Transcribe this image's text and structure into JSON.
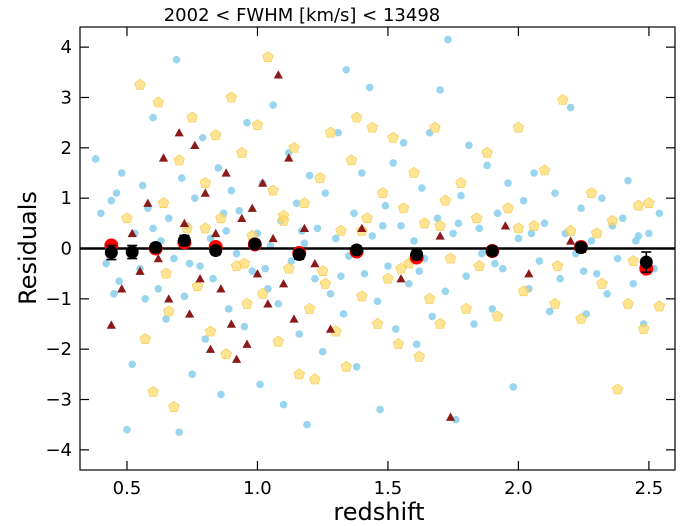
{
  "chart_data": {
    "type": "scatter",
    "title": "2002 < FWHM [km/s] < 13498",
    "xlabel": "redshift",
    "ylabel": "Residuals",
    "xlim": [
      0.32,
      2.6
    ],
    "ylim": [
      -4.4,
      4.4
    ],
    "xticks": [
      0.5,
      1.0,
      1.5,
      2.0,
      2.5
    ],
    "xtick_labels": [
      "0.5",
      "1.0",
      "1.5",
      "2.0",
      "2.5"
    ],
    "yticks": [
      -4,
      -3,
      -2,
      -1,
      0,
      1,
      2,
      3,
      4
    ],
    "ytick_labels": [
      "−4",
      "−3",
      "−2",
      "−1",
      "0",
      "1",
      "2",
      "3",
      "4"
    ],
    "reference_line_y": 0,
    "grid": false,
    "colors": {
      "blue_points": "#87ceeb",
      "gold_points": "#ffd966",
      "darkred_triangles": "#8b1a1a",
      "red_markers": "#ff0000",
      "black_markers": "#000000"
    },
    "series": [
      {
        "marker": "circle",
        "color": "#87ceeb",
        "points": [
          [
            0.38,
            1.78
          ],
          [
            0.4,
            0.7
          ],
          [
            0.42,
            -0.3
          ],
          [
            0.44,
            0.95
          ],
          [
            0.46,
            1.1
          ],
          [
            0.47,
            -0.65
          ],
          [
            0.48,
            1.5
          ],
          [
            0.5,
            -3.6
          ],
          [
            0.52,
            -2.3
          ],
          [
            0.53,
            0.3
          ],
          [
            0.55,
            -0.4
          ],
          [
            0.56,
            1.25
          ],
          [
            0.57,
            -1.0
          ],
          [
            0.58,
            0.8
          ],
          [
            0.6,
            2.6
          ],
          [
            0.62,
            -0.8
          ],
          [
            0.63,
            0.15
          ],
          [
            0.65,
            -1.4
          ],
          [
            0.66,
            0.6
          ],
          [
            0.68,
            -0.2
          ],
          [
            0.69,
            3.75
          ],
          [
            0.7,
            -3.65
          ],
          [
            0.71,
            1.4
          ],
          [
            0.72,
            -0.95
          ],
          [
            0.73,
            0.45
          ],
          [
            0.75,
            -2.5
          ],
          [
            0.76,
            1.0
          ],
          [
            0.78,
            -0.35
          ],
          [
            0.79,
            2.2
          ],
          [
            0.8,
            -1.8
          ],
          [
            0.82,
            0.2
          ],
          [
            0.83,
            -0.6
          ],
          [
            0.85,
            1.6
          ],
          [
            0.86,
            -2.9
          ],
          [
            0.88,
            0.35
          ],
          [
            0.89,
            -1.2
          ],
          [
            0.9,
            1.15
          ],
          [
            0.92,
            -0.1
          ],
          [
            0.93,
            0.75
          ],
          [
            0.95,
            -1.55
          ],
          [
            0.96,
            2.5
          ],
          [
            0.98,
            -0.45
          ],
          [
            1.0,
            0.3
          ],
          [
            1.01,
            -2.7
          ],
          [
            1.02,
            1.3
          ],
          [
            1.04,
            -0.8
          ],
          [
            1.05,
            0.05
          ],
          [
            1.06,
            2.85
          ],
          [
            1.08,
            -1.1
          ],
          [
            1.09,
            0.55
          ],
          [
            1.1,
            -3.1
          ],
          [
            1.12,
            1.9
          ],
          [
            1.13,
            -0.25
          ],
          [
            1.15,
            0.9
          ],
          [
            1.16,
            -1.7
          ],
          [
            1.18,
            0.1
          ],
          [
            1.19,
            -3.5
          ],
          [
            1.2,
            1.45
          ],
          [
            1.22,
            -0.6
          ],
          [
            1.23,
            0.4
          ],
          [
            1.25,
            -2.05
          ],
          [
            1.26,
            1.1
          ],
          [
            1.28,
            -0.9
          ],
          [
            1.3,
            0.2
          ],
          [
            1.31,
            2.3
          ],
          [
            1.33,
            -1.3
          ],
          [
            1.34,
            3.55
          ],
          [
            1.35,
            -0.15
          ],
          [
            1.37,
            0.7
          ],
          [
            1.38,
            -2.35
          ],
          [
            1.4,
            1.5
          ],
          [
            1.41,
            -0.5
          ],
          [
            1.43,
            3.2
          ],
          [
            1.44,
            0.25
          ],
          [
            1.46,
            -1.05
          ],
          [
            1.47,
            -3.2
          ],
          [
            1.49,
            0.85
          ],
          [
            1.5,
            -0.35
          ],
          [
            1.52,
            1.7
          ],
          [
            1.53,
            -1.6
          ],
          [
            1.55,
            0.45
          ],
          [
            1.56,
            2.1
          ],
          [
            1.58,
            -0.7
          ],
          [
            1.6,
            0.15
          ],
          [
            1.61,
            -1.9
          ],
          [
            1.63,
            1.2
          ],
          [
            1.64,
            -0.2
          ],
          [
            1.66,
            2.3
          ],
          [
            1.67,
            -1.35
          ],
          [
            1.69,
            0.6
          ],
          [
            1.7,
            3.15
          ],
          [
            1.72,
            -0.85
          ],
          [
            1.73,
            4.15
          ],
          [
            1.75,
            0.3
          ],
          [
            1.76,
            -3.4
          ],
          [
            1.78,
            1.05
          ],
          [
            1.8,
            -0.55
          ],
          [
            1.81,
            2.05
          ],
          [
            1.83,
            -1.5
          ],
          [
            1.85,
            0.4
          ],
          [
            1.86,
            -0.1
          ],
          [
            1.88,
            1.65
          ],
          [
            1.9,
            -1.2
          ],
          [
            1.92,
            0.7
          ],
          [
            1.94,
            -0.4
          ],
          [
            1.96,
            1.3
          ],
          [
            1.98,
            -2.75
          ],
          [
            2.0,
            0.2
          ],
          [
            2.02,
            0.95
          ],
          [
            2.04,
            -0.8
          ],
          [
            2.06,
            1.5
          ],
          [
            2.08,
            -0.25
          ],
          [
            2.1,
            0.5
          ],
          [
            2.12,
            -1.25
          ],
          [
            2.14,
            1.1
          ],
          [
            2.16,
            -0.6
          ],
          [
            2.18,
            0.3
          ],
          [
            2.2,
            2.8
          ],
          [
            2.22,
            -0.1
          ],
          [
            2.24,
            0.8
          ],
          [
            2.26,
            -1.3
          ],
          [
            2.28,
            0.15
          ],
          [
            2.3,
            -0.5
          ],
          [
            2.32,
            1.0
          ],
          [
            2.34,
            -0.9
          ],
          [
            2.36,
            0.45
          ],
          [
            2.38,
            -0.2
          ],
          [
            2.4,
            0.6
          ],
          [
            2.42,
            1.35
          ],
          [
            2.44,
            -0.7
          ],
          [
            2.46,
            0.25
          ],
          [
            2.48,
            -1.5
          ],
          [
            2.5,
            0.3
          ],
          [
            2.52,
            -0.4
          ],
          [
            2.54,
            0.7
          ],
          [
            0.45,
            -0.9
          ],
          [
            0.6,
            0.4
          ],
          [
            0.74,
            -0.3
          ],
          [
            0.87,
            0.7
          ],
          [
            1.03,
            -0.4
          ],
          [
            1.17,
            0.35
          ],
          [
            1.32,
            -0.55
          ],
          [
            1.48,
            0.45
          ],
          [
            1.62,
            -0.45
          ],
          [
            1.77,
            0.5
          ],
          [
            1.91,
            -0.3
          ],
          [
            2.05,
            0.3
          ],
          [
            2.25,
            -0.45
          ],
          [
            2.45,
            0.15
          ]
        ]
      },
      {
        "marker": "pentagon",
        "color": "#ffd966",
        "points": [
          [
            0.55,
            3.25
          ],
          [
            0.57,
            -1.8
          ],
          [
            0.6,
            -2.85
          ],
          [
            0.62,
            2.9
          ],
          [
            0.64,
            0.9
          ],
          [
            0.66,
            -1.25
          ],
          [
            0.68,
            -3.15
          ],
          [
            0.7,
            1.75
          ],
          [
            0.73,
            0.4
          ],
          [
            0.75,
            2.6
          ],
          [
            0.77,
            -0.75
          ],
          [
            0.8,
            1.3
          ],
          [
            0.82,
            -1.65
          ],
          [
            0.84,
            2.25
          ],
          [
            0.86,
            0.6
          ],
          [
            0.88,
            -2.1
          ],
          [
            0.9,
            3.0
          ],
          [
            0.92,
            -0.35
          ],
          [
            0.94,
            1.9
          ],
          [
            0.96,
            -1.1
          ],
          [
            0.98,
            0.25
          ],
          [
            1.0,
            2.45
          ],
          [
            1.02,
            -0.9
          ],
          [
            1.04,
            3.8
          ],
          [
            1.06,
            1.15
          ],
          [
            1.08,
            -1.85
          ],
          [
            1.1,
            0.65
          ],
          [
            1.12,
            -0.4
          ],
          [
            1.14,
            2.0
          ],
          [
            1.16,
            -2.5
          ],
          [
            1.18,
            0.9
          ],
          [
            1.2,
            -1.2
          ],
          [
            1.22,
            -2.6
          ],
          [
            1.24,
            1.4
          ],
          [
            1.26,
            -0.7
          ],
          [
            1.28,
            2.3
          ],
          [
            1.3,
            -1.65
          ],
          [
            1.32,
            0.35
          ],
          [
            1.34,
            -2.35
          ],
          [
            1.36,
            1.75
          ],
          [
            1.38,
            2.6
          ],
          [
            1.4,
            -0.95
          ],
          [
            1.42,
            0.6
          ],
          [
            1.44,
            2.4
          ],
          [
            1.46,
            -1.5
          ],
          [
            1.48,
            1.1
          ],
          [
            1.5,
            -0.6
          ],
          [
            1.52,
            2.2
          ],
          [
            1.54,
            -1.9
          ],
          [
            1.56,
            0.8
          ],
          [
            1.58,
            -0.3
          ],
          [
            1.6,
            1.5
          ],
          [
            1.62,
            -2.15
          ],
          [
            1.64,
            0.5
          ],
          [
            1.66,
            -1.0
          ],
          [
            1.68,
            2.4
          ],
          [
            1.7,
            -1.5
          ],
          [
            1.72,
            0.95
          ],
          [
            1.74,
            -0.2
          ],
          [
            1.78,
            1.3
          ],
          [
            1.8,
            -1.2
          ],
          [
            1.84,
            0.6
          ],
          [
            1.88,
            1.9
          ],
          [
            1.92,
            -1.35
          ],
          [
            1.96,
            0.8
          ],
          [
            2.0,
            2.4
          ],
          [
            2.02,
            -0.85
          ],
          [
            2.06,
            0.45
          ],
          [
            2.1,
            1.55
          ],
          [
            2.14,
            -1.1
          ],
          [
            2.17,
            2.95
          ],
          [
            2.2,
            0.35
          ],
          [
            2.24,
            -1.4
          ],
          [
            2.28,
            1.1
          ],
          [
            2.32,
            -0.7
          ],
          [
            2.36,
            0.55
          ],
          [
            2.38,
            -2.8
          ],
          [
            2.42,
            -1.1
          ],
          [
            2.46,
            0.85
          ],
          [
            2.48,
            -1.6
          ],
          [
            2.5,
            0.9
          ],
          [
            2.54,
            -1.15
          ],
          [
            0.5,
            0.6
          ],
          [
            0.65,
            -0.5
          ],
          [
            0.8,
            0.4
          ],
          [
            0.95,
            -0.3
          ],
          [
            1.1,
            0.55
          ],
          [
            1.25,
            -0.45
          ],
          [
            1.4,
            0.35
          ],
          [
            1.55,
            -0.4
          ],
          [
            1.7,
            0.45
          ],
          [
            1.85,
            -0.35
          ],
          [
            2.0,
            0.4
          ],
          [
            2.15,
            -0.35
          ],
          [
            2.3,
            0.3
          ],
          [
            2.44,
            -0.25
          ]
        ]
      },
      {
        "marker": "triangle",
        "color": "#8b1a1a",
        "points": [
          [
            0.44,
            -1.52
          ],
          [
            0.48,
            -0.8
          ],
          [
            0.52,
            0.3
          ],
          [
            0.55,
            -0.45
          ],
          [
            0.58,
            0.9
          ],
          [
            0.62,
            -0.2
          ],
          [
            0.64,
            1.8
          ],
          [
            0.66,
            -1.0
          ],
          [
            0.7,
            2.3
          ],
          [
            0.72,
            0.5
          ],
          [
            0.74,
            -1.3
          ],
          [
            0.76,
            2.05
          ],
          [
            0.78,
            -0.6
          ],
          [
            0.8,
            1.1
          ],
          [
            0.82,
            -2.0
          ],
          [
            0.84,
            0.3
          ],
          [
            0.86,
            -0.8
          ],
          [
            0.88,
            1.5
          ],
          [
            0.9,
            -1.5
          ],
          [
            0.92,
            -2.2
          ],
          [
            0.94,
            0.6
          ],
          [
            0.96,
            -1.9
          ],
          [
            0.98,
            0.8
          ],
          [
            1.0,
            -0.5
          ],
          [
            1.02,
            1.3
          ],
          [
            1.04,
            -1.1
          ],
          [
            1.06,
            0.2
          ],
          [
            1.08,
            3.45
          ],
          [
            1.1,
            -0.7
          ],
          [
            1.12,
            1.8
          ],
          [
            1.14,
            -1.4
          ],
          [
            1.18,
            0.4
          ],
          [
            1.22,
            -0.3
          ],
          [
            1.28,
            -1.6
          ],
          [
            1.4,
            0.4
          ],
          [
            1.55,
            -0.6
          ],
          [
            1.7,
            0.25
          ],
          [
            1.74,
            -3.35
          ],
          [
            1.95,
            0.45
          ],
          [
            2.04,
            -0.5
          ],
          [
            2.2,
            0.15
          ]
        ]
      }
    ],
    "binned_red": {
      "marker": "circle",
      "color": "#ff0000",
      "x": [
        0.44,
        0.61,
        0.72,
        0.84,
        0.99,
        1.16,
        1.38,
        1.61,
        1.9,
        2.24,
        2.49
      ],
      "y": [
        0.06,
        0.0,
        0.12,
        0.03,
        0.08,
        -0.09,
        -0.06,
        -0.18,
        -0.05,
        0.03,
        -0.4
      ]
    },
    "binned_black": {
      "marker": "circle",
      "color": "#000000",
      "x": [
        0.44,
        0.52,
        0.61,
        0.72,
        0.84,
        0.99,
        1.16,
        1.38,
        1.61,
        1.9,
        2.24,
        2.49
      ],
      "y": [
        -0.08,
        -0.07,
        0.02,
        0.16,
        -0.04,
        0.09,
        -0.12,
        -0.03,
        -0.12,
        -0.05,
        0.02,
        -0.27
      ],
      "err": [
        0.14,
        0.13,
        0.08,
        0.1,
        0.08,
        0.07,
        0.09,
        0.08,
        0.1,
        0.08,
        0.09,
        0.2
      ]
    }
  }
}
